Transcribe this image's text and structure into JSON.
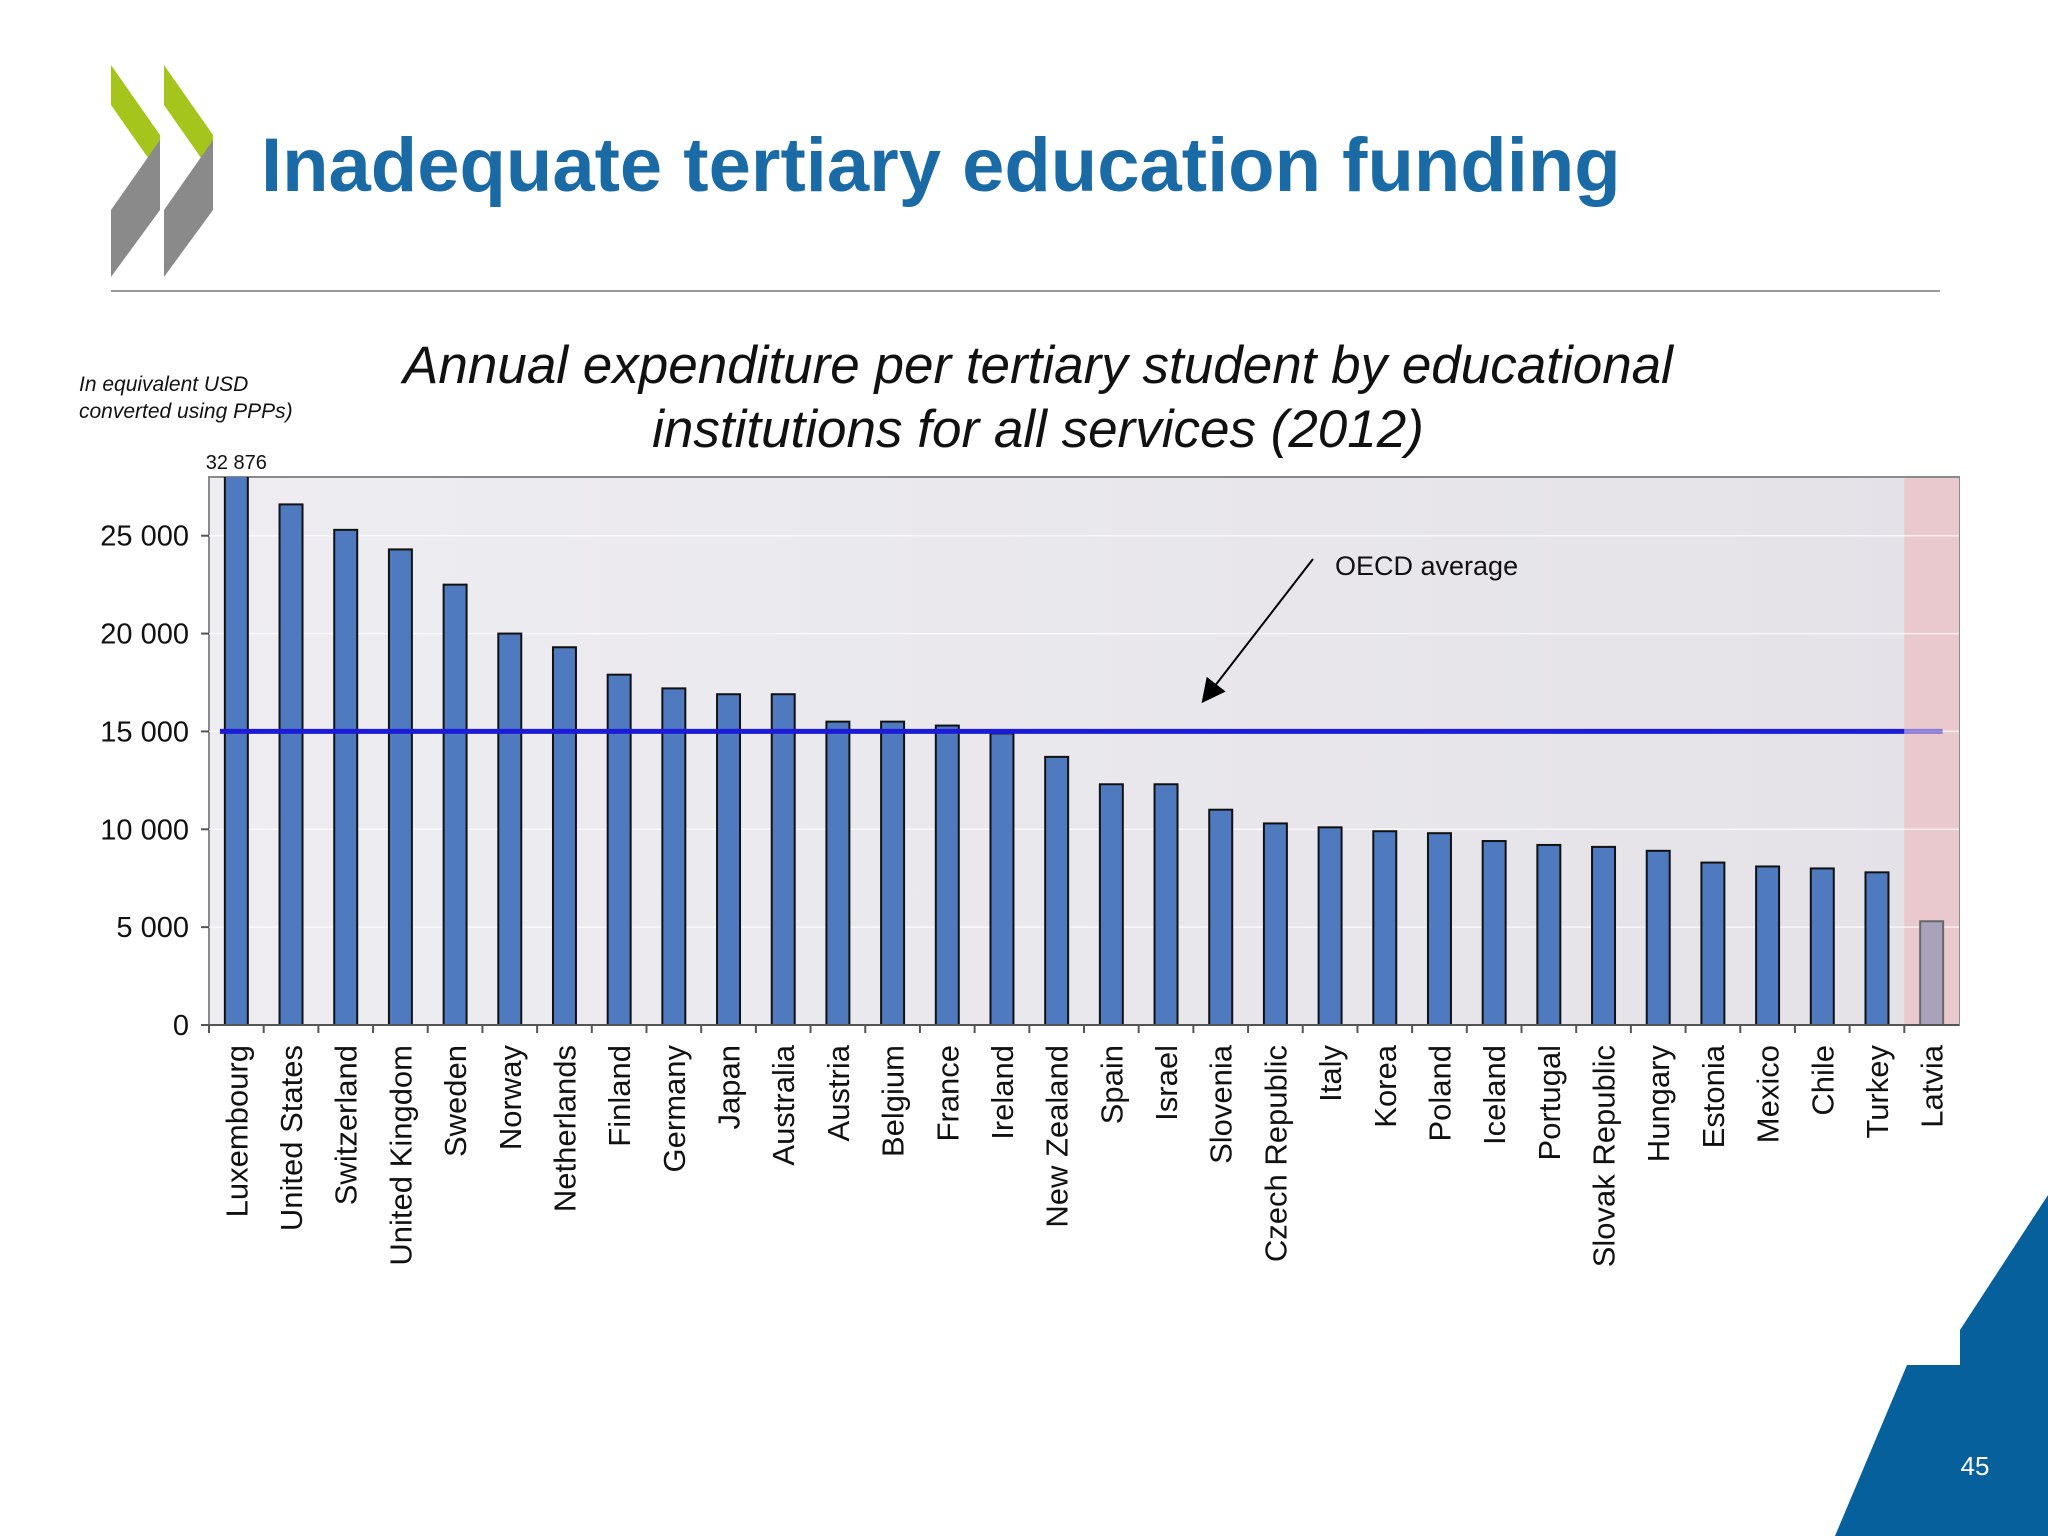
{
  "header": {
    "title": "Inadequate tertiary education funding"
  },
  "page_number": "45",
  "chart_data": {
    "type": "bar",
    "title": "Annual expenditure per tertiary student by educational institutions for all services (2012)",
    "y_label": "In equivalent USD converted using PPPs)",
    "categories": [
      "Luxembourg",
      "United States",
      "Switzerland",
      "United Kingdom",
      "Sweden",
      "Norway",
      "Netherlands",
      "Finland",
      "Germany",
      "Japan",
      "Australia",
      "Austria",
      "Belgium",
      "France",
      "Ireland",
      "New Zealand",
      "Spain",
      "Israel",
      "Slovenia",
      "Czech Republic",
      "Italy",
      "Korea",
      "Poland",
      "Iceland",
      "Portugal",
      "Slovak Republic",
      "Hungary",
      "Estonia",
      "Mexico",
      "Chile",
      "Turkey",
      "Latvia"
    ],
    "values": [
      32876,
      26600,
      25300,
      24300,
      22500,
      20000,
      19300,
      17900,
      17200,
      16900,
      16900,
      15500,
      15500,
      15300,
      14900,
      13700,
      12300,
      12300,
      11000,
      10300,
      10100,
      9900,
      9800,
      9400,
      9200,
      9100,
      8900,
      8300,
      8100,
      8000,
      7800,
      5300
    ],
    "value_labels": [
      "32 876",
      null,
      null,
      null,
      null,
      null,
      null,
      null,
      null,
      null,
      null,
      null,
      null,
      null,
      null,
      null,
      null,
      null,
      null,
      null,
      null,
      null,
      null,
      null,
      null,
      null,
      null,
      null,
      null,
      null,
      null,
      null
    ],
    "color": "#4f7ac0",
    "highlight": {
      "index": 31,
      "color": "#a9a2bb",
      "band_color": "#e9c9cd"
    },
    "average": 15000,
    "average_label": "OECD average",
    "average_color": "#1c1cd8",
    "ylim": [
      0,
      28000
    ],
    "yticks": [
      {
        "value": 0,
        "label": "0"
      },
      {
        "value": 5000,
        "label": "5 000"
      },
      {
        "value": 10000,
        "label": "10 000"
      },
      {
        "value": 15000,
        "label": "15 000"
      },
      {
        "value": 20000,
        "label": "20 000"
      },
      {
        "value": 25000,
        "label": "25 000"
      }
    ],
    "grid": true
  }
}
